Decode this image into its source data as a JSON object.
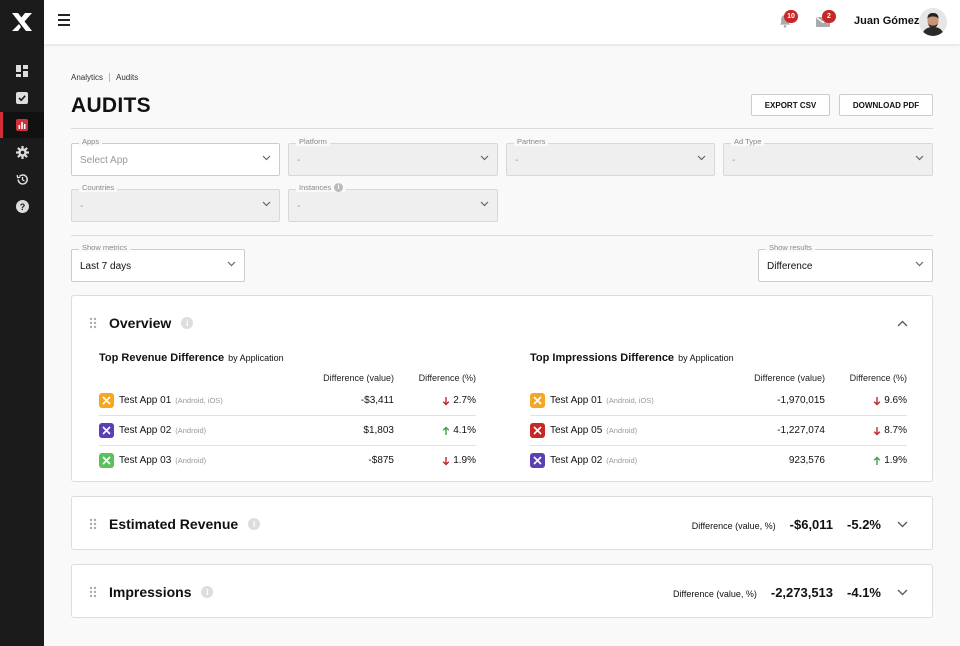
{
  "topbar": {
    "notifications_count": "10",
    "messages_count": "2",
    "user_name": "Juan Gómez"
  },
  "breadcrumb": [
    "Analytics",
    "Audits"
  ],
  "page": {
    "title": "AUDITS",
    "export_csv": "EXPORT CSV",
    "download_pdf": "DOWNLOAD PDF"
  },
  "filters": {
    "apps": {
      "label": "Apps",
      "placeholder": "Select App"
    },
    "platform": {
      "label": "Platform",
      "value": "-"
    },
    "partners": {
      "label": "Partners",
      "value": "-"
    },
    "ad_type": {
      "label": "Ad Type",
      "value": "-"
    },
    "countries": {
      "label": "Countries",
      "value": "-"
    },
    "instances": {
      "label": "Instances",
      "value": "-"
    },
    "show_metrics": {
      "label": "Show metrics",
      "value": "Last 7 days"
    },
    "show_results": {
      "label": "Show results",
      "value": "Difference"
    }
  },
  "overview": {
    "title": "Overview",
    "revenue": {
      "title": "Top Revenue Difference",
      "subtitle": "by Application",
      "col_value": "Difference (value)",
      "col_pct": "Difference (%)",
      "rows": [
        {
          "name": "Test App 01",
          "platform": "(Android, iOS)",
          "value": "-$3,411",
          "pct": "2.7%",
          "dir": "down",
          "color": "#f5a623"
        },
        {
          "name": "Test App 02",
          "platform": "(Android)",
          "value": "$1,803",
          "pct": "4.1%",
          "dir": "up",
          "color": "#5b3fb5"
        },
        {
          "name": "Test App 03",
          "platform": "(Android)",
          "value": "-$875",
          "pct": "1.9%",
          "dir": "down",
          "color": "#5cc05c"
        }
      ]
    },
    "impressions": {
      "title": "Top Impressions Difference",
      "subtitle": "by Application",
      "col_value": "Difference (value)",
      "col_pct": "Difference (%)",
      "rows": [
        {
          "name": "Test App 01",
          "platform": "(Android, iOS)",
          "value": "-1,970,015",
          "pct": "9.6%",
          "dir": "down",
          "color": "#f5a623"
        },
        {
          "name": "Test App 05",
          "platform": "(Android)",
          "value": "-1,227,074",
          "pct": "8.7%",
          "dir": "down",
          "color": "#c62828"
        },
        {
          "name": "Test App 02",
          "platform": "(Android)",
          "value": "923,576",
          "pct": "1.9%",
          "dir": "up",
          "color": "#5b3fb5"
        }
      ]
    }
  },
  "estimated_revenue": {
    "title": "Estimated Revenue",
    "label": "Difference (value, %)",
    "value": "-$6,011",
    "pct": "-5.2%"
  },
  "impressions_panel": {
    "title": "Impressions",
    "label": "Difference (value, %)",
    "value": "-2,273,513",
    "pct": "-4.1%"
  },
  "colors": {
    "accent": "#d32f3a",
    "down": "#c62828",
    "up": "#43a047"
  }
}
